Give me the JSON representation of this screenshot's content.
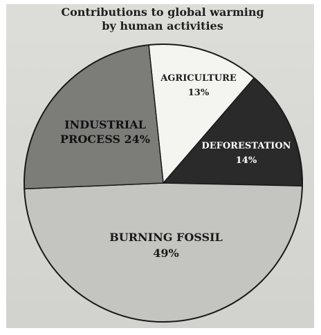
{
  "chart_data": {
    "type": "pie",
    "title": "Contributions to global warming by human activities",
    "title_lines": [
      "Contributions to global warming",
      "by human activities"
    ],
    "slices": [
      {
        "name_lines": [
          "AGRICULTURE"
        ],
        "label": "13%",
        "value": 13,
        "color": "#f4f4f1",
        "text_color": "#1c1c1c"
      },
      {
        "name_lines": [
          "DEFORESTATION"
        ],
        "label": "14%",
        "value": 14,
        "color": "#2a2a2a",
        "text_color": "#ffffff"
      },
      {
        "name_lines": [
          "BURNING FOSSIL"
        ],
        "label": "49%",
        "value": 49,
        "color": "#c4c4c1",
        "text_color": "#1a1a1a"
      },
      {
        "name_lines": [
          "INDUSTRIAL",
          "PROCESS 24%"
        ],
        "label": "",
        "value": 24,
        "color": "#7c7c79",
        "text_color": "#111111"
      }
    ]
  }
}
